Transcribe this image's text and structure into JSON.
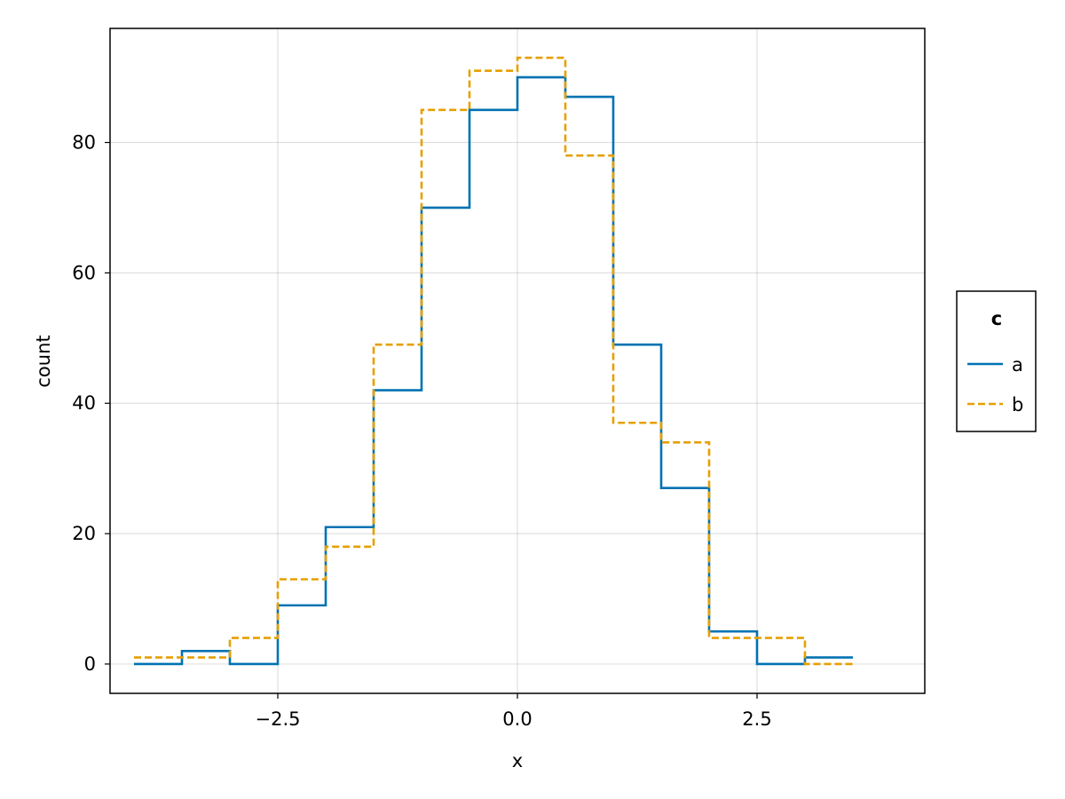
{
  "chart_data": {
    "type": "line",
    "subtype": "step-histogram",
    "xlabel": "x",
    "ylabel": "count",
    "xlim": [
      -4.25,
      4.25
    ],
    "ylim": [
      -4.5,
      97.5
    ],
    "xticks": [
      -2.5,
      0.0,
      2.5
    ],
    "xtick_labels": [
      "−2.5",
      "0.0",
      "2.5"
    ],
    "yticks": [
      0,
      20,
      40,
      60,
      80
    ],
    "ytick_labels": [
      "0",
      "20",
      "40",
      "60",
      "80"
    ],
    "grid": true,
    "legend": {
      "title": "c",
      "position": "right, outside plot area"
    },
    "bin_edges": [
      -4.0,
      -3.5,
      -3.0,
      -2.5,
      -2.0,
      -1.5,
      -1.0,
      -0.5,
      0.0,
      0.5,
      1.0,
      1.5,
      2.0,
      2.5,
      3.0,
      3.5
    ],
    "series": [
      {
        "name": "a",
        "color": "#0072b2",
        "line_style": "solid",
        "counts": [
          0,
          2,
          0,
          9,
          21,
          42,
          70,
          85,
          90,
          87,
          49,
          27,
          5,
          0,
          1
        ]
      },
      {
        "name": "b",
        "color": "#e69f00",
        "line_style": "dashed",
        "counts": [
          1,
          1,
          4,
          13,
          18,
          49,
          85,
          91,
          93,
          78,
          37,
          34,
          4,
          4,
          0
        ]
      }
    ]
  }
}
